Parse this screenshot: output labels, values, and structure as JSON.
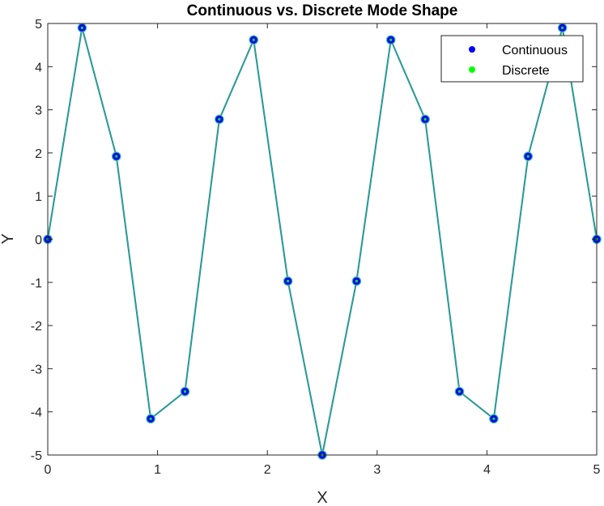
{
  "chart_data": {
    "type": "line",
    "title": "Continuous vs. Discrete Mode Shape",
    "xlabel": "X",
    "ylabel": "Y",
    "xlim": [
      0,
      5
    ],
    "ylim": [
      -5,
      5
    ],
    "xticks": [
      0,
      1,
      2,
      3,
      4,
      5
    ],
    "yticks": [
      -5,
      -4,
      -3,
      -2,
      -1,
      0,
      1,
      2,
      3,
      4,
      5
    ],
    "xtick_labels": [
      "0",
      "1",
      "2",
      "3",
      "4",
      "5"
    ],
    "ytick_labels": [
      "-5",
      "-4",
      "-3",
      "-2",
      "-1",
      "0",
      "1",
      "2",
      "3",
      "4",
      "5"
    ],
    "grid": false,
    "legend_position": "top-right",
    "x": [
      0,
      0.3125,
      0.625,
      0.9375,
      1.25,
      1.5625,
      1.875,
      2.1875,
      2.5,
      2.8125,
      3.125,
      3.4375,
      3.75,
      4.0625,
      4.375,
      4.6875,
      5
    ],
    "series": [
      {
        "name": "Continuous",
        "color": "#0000ff",
        "line_color": "#1a7fa0",
        "marker": "circle",
        "values": [
          0,
          4.9,
          1.92,
          -4.16,
          -3.53,
          2.78,
          4.62,
          -0.97,
          -5.0,
          -0.97,
          4.62,
          2.78,
          -3.53,
          -4.16,
          1.92,
          4.9,
          0
        ]
      },
      {
        "name": "Discrete",
        "color": "#00ff00",
        "line_color": "#2aa58a",
        "marker": "circle",
        "values": [
          0,
          4.9,
          1.92,
          -4.16,
          -3.53,
          2.78,
          4.62,
          -0.97,
          -5.0,
          -0.97,
          4.62,
          2.78,
          -3.53,
          -4.16,
          1.92,
          4.9,
          0
        ]
      }
    ]
  }
}
